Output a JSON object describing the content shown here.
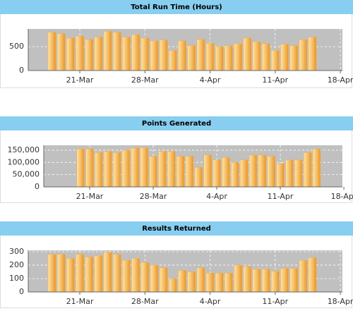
{
  "chart_data": [
    {
      "type": "bar",
      "title": "Total Run Time (Hours)",
      "color": "#f3ab45",
      "categories": [
        null,
        null,
        null,
        "21-Mar",
        null,
        null,
        null,
        null,
        null,
        null,
        "28-Mar",
        null,
        null,
        null,
        null,
        null,
        null,
        "4-Apr",
        null,
        null,
        null,
        null,
        null,
        null,
        "11-Apr",
        null,
        null,
        null,
        null,
        null,
        null,
        "18-Apr"
      ],
      "values": [
        800,
        770,
        680,
        720,
        650,
        700,
        820,
        800,
        700,
        750,
        680,
        620,
        640,
        420,
        620,
        520,
        650,
        570,
        500,
        520,
        560,
        680,
        600,
        560,
        420,
        550,
        520,
        640,
        700,
        null,
        null,
        null
      ],
      "ylim": [
        0,
        870
      ],
      "yticks": [
        0,
        500
      ],
      "grid": true
    },
    {
      "type": "bar",
      "title": "Points Generated",
      "color": "#f3ab45",
      "categories": [
        null,
        null,
        null,
        "21-Mar",
        null,
        null,
        null,
        null,
        null,
        null,
        "28-Mar",
        null,
        null,
        null,
        null,
        null,
        null,
        "4-Apr",
        null,
        null,
        null,
        null,
        null,
        null,
        "11-Apr",
        null,
        null,
        null,
        null,
        null,
        null,
        "18-Apr"
      ],
      "values": [
        null,
        null,
        155000,
        155000,
        140000,
        145000,
        140000,
        150000,
        160000,
        160000,
        125000,
        145000,
        145000,
        125000,
        125000,
        80000,
        130000,
        110000,
        120000,
        100000,
        110000,
        130000,
        130000,
        125000,
        95000,
        110000,
        110000,
        140000,
        155000,
        null,
        null,
        null
      ],
      "ylim": [
        0,
        170000
      ],
      "yticks": [
        0,
        {
          "value": 50000,
          "label": "50,000"
        },
        {
          "value": 100000,
          "label": "100,000"
        },
        {
          "value": 150000,
          "label": "150,000"
        }
      ],
      "grid": true
    },
    {
      "type": "bar",
      "title": "Results Returned",
      "color": "#f3ab45",
      "categories": [
        null,
        null,
        null,
        "21-Mar",
        null,
        null,
        null,
        null,
        null,
        null,
        "28-Mar",
        null,
        null,
        null,
        null,
        null,
        null,
        "4-Apr",
        null,
        null,
        null,
        null,
        null,
        null,
        "11-Apr",
        null,
        null,
        null,
        null,
        null,
        null,
        "18-Apr"
      ],
      "values": [
        280,
        280,
        250,
        280,
        260,
        270,
        295,
        280,
        235,
        250,
        220,
        200,
        180,
        100,
        160,
        150,
        180,
        140,
        140,
        140,
        200,
        190,
        170,
        170,
        155,
        175,
        175,
        235,
        255,
        null,
        null,
        null
      ],
      "ylim": [
        0,
        310
      ],
      "yticks": [
        0,
        100,
        200,
        300
      ],
      "grid": true
    }
  ]
}
